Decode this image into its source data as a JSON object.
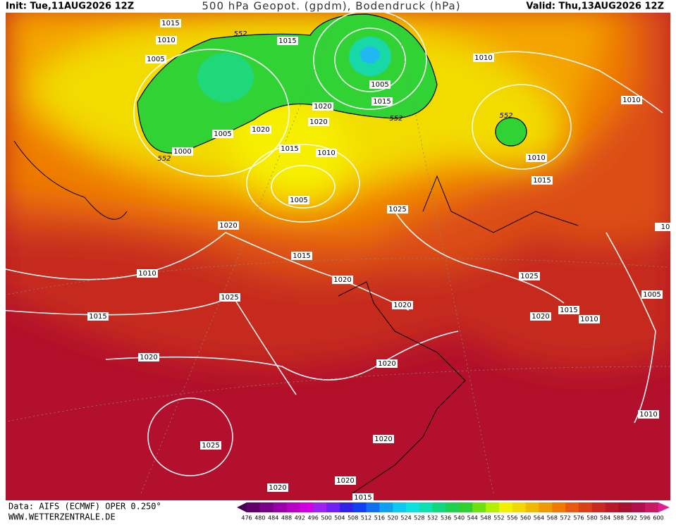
{
  "header": {
    "init": "Init: Tue,11AUG2026 12Z",
    "title": "500 hPa Geopot. (gpdm), Bodendruck (hPa)",
    "valid": "Valid: Thu,13AUG2026 12Z"
  },
  "footer": {
    "source": "Data: AIFS (ECMWF) OPER 0.250°",
    "website": "WWW.WETTERZENTRALE.DE"
  },
  "isobar_labels": [
    "1015",
    "1010",
    "1005",
    "552",
    "1015",
    "1010",
    "1005",
    "1015",
    "1020",
    "552",
    "552",
    "1010",
    "1020",
    "1020",
    "1005",
    "1015",
    "1010",
    "1000",
    "552",
    "1010",
    "1015",
    "1005",
    "1025",
    "1020",
    "1015",
    "1010",
    "1025",
    "1020",
    "1025",
    "1020",
    "1005",
    "1015",
    "1020",
    "1010",
    "1015",
    "1020",
    "1020",
    "1010",
    "1025",
    "1020",
    "1020",
    "1020",
    "1015",
    "10"
  ],
  "colorbar_labels": [
    "476",
    "480",
    "484",
    "488",
    "492",
    "496",
    "500",
    "504",
    "508",
    "512",
    "516",
    "520",
    "524",
    "528",
    "532",
    "536",
    "540",
    "544",
    "548",
    "552",
    "556",
    "560",
    "564",
    "568",
    "572",
    "576",
    "580",
    "584",
    "588",
    "592",
    "596",
    "600"
  ]
}
